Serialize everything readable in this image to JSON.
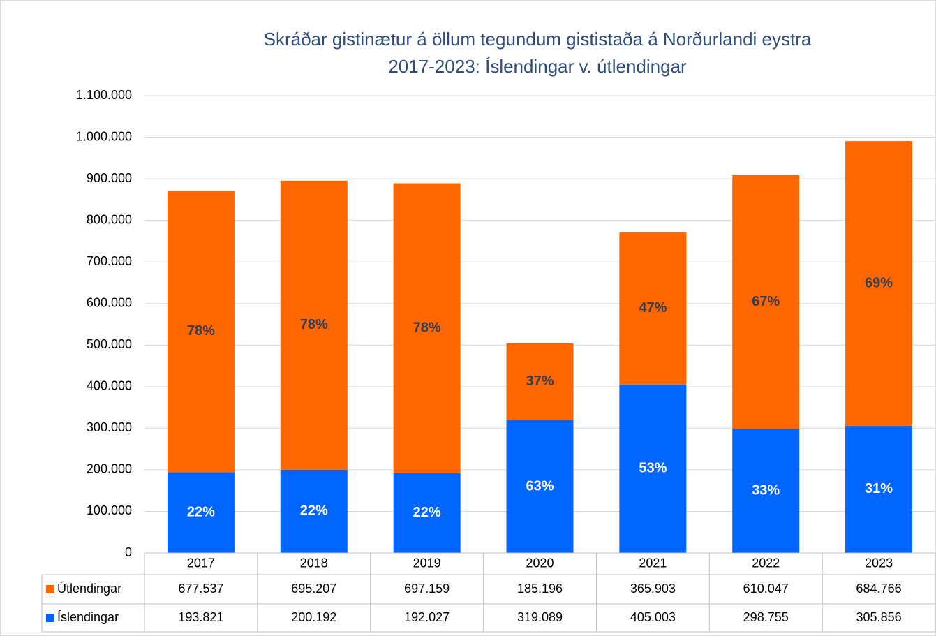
{
  "chart_data": {
    "type": "stacked_bar",
    "title": [
      "Skráðar gistinætur á öllum tegundum gististaða á Norðurlandi eystra",
      "2017-2023: Íslendingar v. útlendingar"
    ],
    "categories": [
      "2017",
      "2018",
      "2019",
      "2020",
      "2021",
      "2022",
      "2023"
    ],
    "series": [
      {
        "name": "Íslendingar",
        "color": "#0066ff",
        "values": [
          193821,
          200192,
          192027,
          319089,
          405003,
          298755,
          305856
        ],
        "value_labels": [
          "193.821",
          "200.192",
          "192.027",
          "319.089",
          "405.003",
          "298.755",
          "305.856"
        ],
        "share_labels": [
          "22%",
          "22%",
          "22%",
          "63%",
          "53%",
          "33%",
          "31%"
        ]
      },
      {
        "name": "Útlendingar",
        "color": "#ff6600",
        "values": [
          677537,
          695207,
          697159,
          185196,
          365903,
          610047,
          684766
        ],
        "value_labels": [
          "677.537",
          "695.207",
          "697.159",
          "185.196",
          "365.903",
          "610.047",
          "684.766"
        ],
        "share_labels": [
          "78%",
          "78%",
          "78%",
          "37%",
          "47%",
          "67%",
          "69%"
        ]
      }
    ],
    "ylim": [
      0,
      1100000
    ],
    "yticks": [
      0,
      {
        "value": 100000,
        "label": "100.000"
      },
      {
        "value": 200000,
        "label": "200.000"
      },
      {
        "value": 300000,
        "label": "300.000"
      },
      {
        "value": 400000,
        "label": "400.000"
      },
      {
        "value": 500000,
        "label": "500.000"
      },
      {
        "value": 600000,
        "label": "600.000"
      },
      {
        "value": 700000,
        "label": "700.000"
      },
      {
        "value": 800000,
        "label": "800.000"
      },
      {
        "value": 900000,
        "label": "900.000"
      },
      {
        "value": 1000000,
        "label": "1.000.000"
      },
      {
        "value": 1100000,
        "label": "1.100.000"
      }
    ],
    "grid": true,
    "data_table": true
  }
}
